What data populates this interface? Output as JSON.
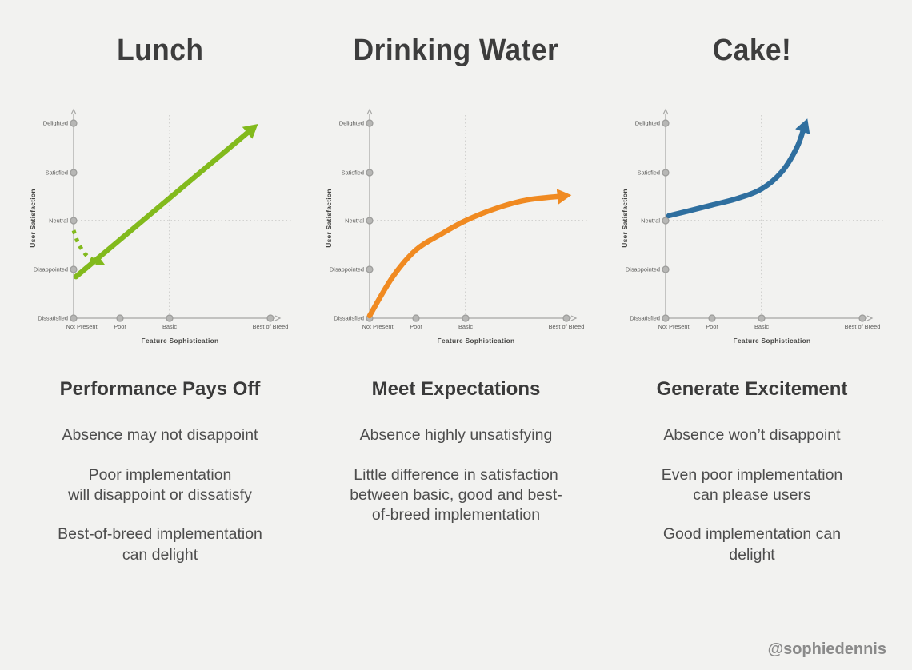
{
  "page": {
    "background": "#f2f2f0",
    "attribution": "@sophiedennis"
  },
  "axis": {
    "y_title": "User Satisfaction",
    "x_title": "Feature Sophistication",
    "y_labels": [
      "Delighted",
      "Satisfied",
      "Neutral",
      "Disappointed",
      "Dissatisfied"
    ],
    "x_labels": [
      "Not Present",
      "Poor",
      "Basic",
      "Best of Breed"
    ]
  },
  "columns": [
    {
      "title": "Lunch",
      "heading": "Performance Pays Off",
      "paragraphs": [
        [
          "Absence may not disappoint"
        ],
        [
          "Poor implementation",
          "will disappoint or dissatisfy"
        ],
        [
          "Best-of-breed implementation",
          "can delight"
        ]
      ]
    },
    {
      "title": "Drinking Water",
      "heading": "Meet Expectations",
      "paragraphs": [
        [
          "Absence highly unsatisfying"
        ],
        [
          "Little difference in satisfaction",
          "between basic, good and best-",
          "of-breed implementation"
        ]
      ]
    },
    {
      "title": "Cake!",
      "heading": "Generate Excitement",
      "paragraphs": [
        [
          "Absence won’t disappoint"
        ],
        [
          "Even poor implementation",
          "can please users"
        ],
        [
          "Good implementation can",
          "delight"
        ]
      ]
    }
  ],
  "chart_data": [
    {
      "type": "line",
      "title": "Lunch",
      "kano_type": "performance-attribute",
      "xlabel": "Feature Sophistication",
      "ylabel": "User Satisfaction",
      "x_categories": [
        "Not Present",
        "Poor",
        "Basic",
        "Best of Breed"
      ],
      "y_categories": [
        "Dissatisfied",
        "Disappointed",
        "Neutral",
        "Satisfied",
        "Delighted"
      ],
      "y_scale": {
        "Dissatisfied": -2,
        "Disappointed": -1,
        "Neutral": 0,
        "Satisfied": 1,
        "Delighted": 2
      },
      "color": "#82ba1c",
      "gridlines": {
        "horizontal_at": "Neutral",
        "vertical_at": "Basic"
      },
      "series": [
        {
          "name": "performance-line",
          "style": "solid",
          "arrow": true,
          "points": [
            [
              0.05,
              -1.15
            ],
            [
              2.8,
              1.85
            ]
          ]
        },
        {
          "name": "absence-dip-hint",
          "style": "dashed",
          "arrow": true,
          "points": [
            [
              0.0,
              -0.2
            ],
            [
              0.12,
              -0.5
            ],
            [
              0.32,
              -0.75
            ],
            [
              0.55,
              -0.85
            ]
          ]
        }
      ]
    },
    {
      "type": "line",
      "title": "Drinking Water",
      "kano_type": "basic-expectation",
      "xlabel": "Feature Sophistication",
      "ylabel": "User Satisfaction",
      "x_categories": [
        "Not Present",
        "Poor",
        "Basic",
        "Best of Breed"
      ],
      "y_categories": [
        "Dissatisfied",
        "Disappointed",
        "Neutral",
        "Satisfied",
        "Delighted"
      ],
      "y_scale": {
        "Dissatisfied": -2,
        "Disappointed": -1,
        "Neutral": 0,
        "Satisfied": 1,
        "Delighted": 2
      },
      "color": "#f08a21",
      "gridlines": {
        "horizontal_at": "Neutral",
        "vertical_at": "Basic"
      },
      "series": [
        {
          "name": "expectation-line",
          "style": "solid",
          "arrow": true,
          "points": [
            [
              0,
              -1.95
            ],
            [
              0.5,
              -1.15
            ],
            [
              1,
              -0.6
            ],
            [
              1.5,
              -0.28
            ],
            [
              2,
              0.0
            ],
            [
              2.3,
              0.25
            ],
            [
              2.6,
              0.42
            ],
            [
              2.95,
              0.5
            ]
          ]
        }
      ]
    },
    {
      "type": "line",
      "title": "Cake!",
      "kano_type": "excitement-attribute",
      "xlabel": "Feature Sophistication",
      "ylabel": "User Satisfaction",
      "x_categories": [
        "Not Present",
        "Poor",
        "Basic",
        "Best of Breed"
      ],
      "y_categories": [
        "Dissatisfied",
        "Disappointed",
        "Neutral",
        "Satisfied",
        "Delighted"
      ],
      "y_scale": {
        "Dissatisfied": -2,
        "Disappointed": -1,
        "Neutral": 0,
        "Satisfied": 1,
        "Delighted": 2
      },
      "color": "#2f6f9f",
      "gridlines": {
        "horizontal_at": "Neutral",
        "vertical_at": "Basic"
      },
      "series": [
        {
          "name": "excitement-line",
          "style": "solid",
          "arrow": true,
          "points": [
            [
              0.07,
              0.1
            ],
            [
              0.5,
              0.2
            ],
            [
              1,
              0.32
            ],
            [
              1.5,
              0.45
            ],
            [
              2,
              0.65
            ],
            [
              2.2,
              1.0
            ],
            [
              2.35,
              1.5
            ],
            [
              2.42,
              1.9
            ]
          ]
        }
      ]
    }
  ]
}
